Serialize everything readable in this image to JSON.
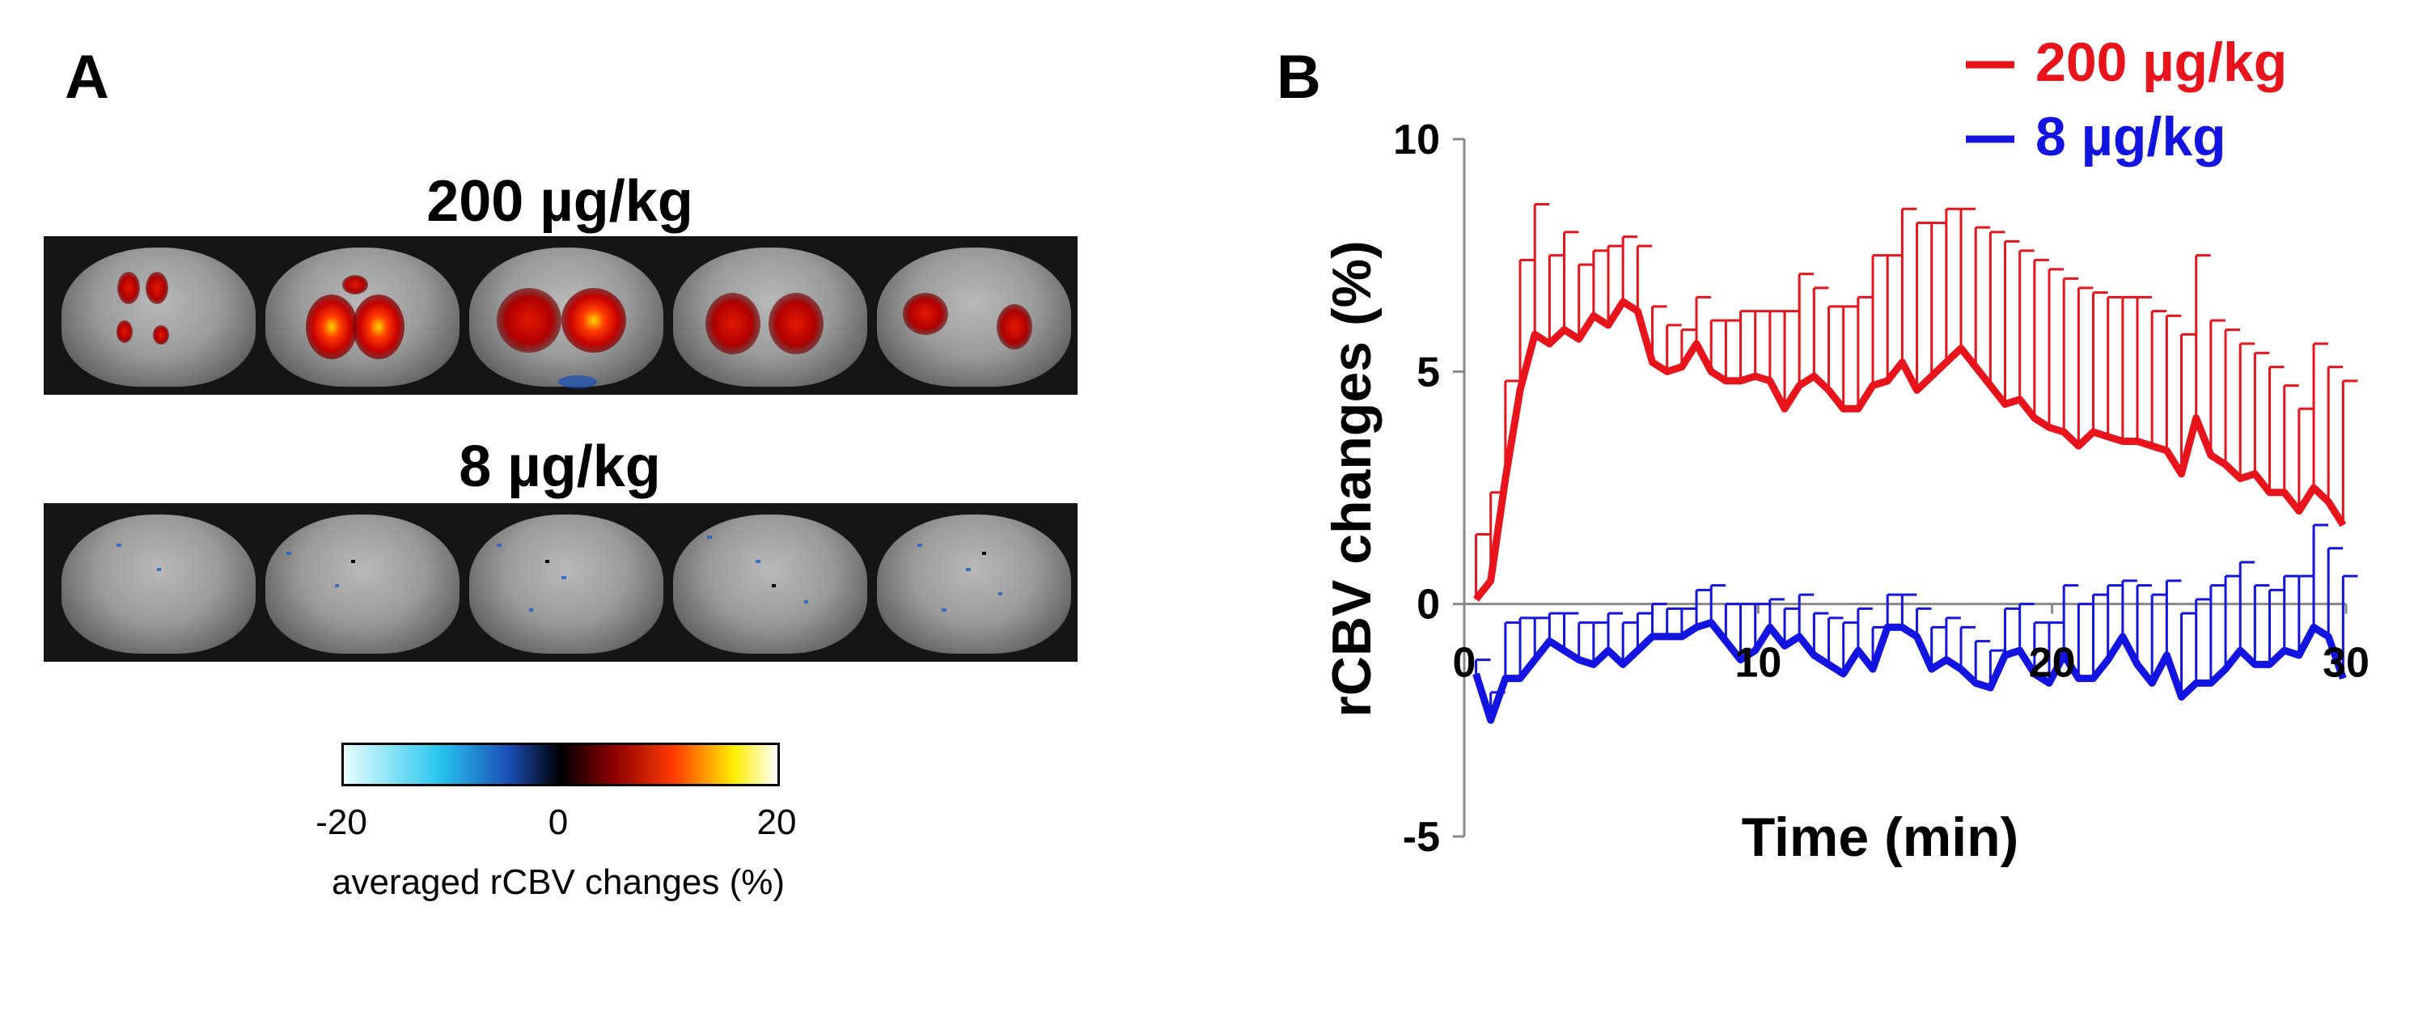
{
  "panel_a": {
    "letter": "A",
    "title_high": "200 µg/kg",
    "title_low": "8 µg/kg",
    "colorbar": {
      "min_label": "-20",
      "mid_label": "0",
      "max_label": "20",
      "label": "averaged rCBV changes (%)"
    }
  },
  "panel_b": {
    "letter": "B"
  },
  "chart_data": {
    "type": "line",
    "title": "",
    "xlabel": "Time (min)",
    "ylabel": "rCBV changes (%)",
    "xlim": [
      0,
      30
    ],
    "ylim": [
      -5,
      10
    ],
    "xticks": [
      0,
      10,
      20,
      30
    ],
    "xtick_labels": [
      "0",
      "10",
      "20",
      "30"
    ],
    "yticks": [
      -5,
      0,
      5,
      10
    ],
    "ytick_labels": [
      "-5",
      "0",
      "5",
      "10"
    ],
    "legend_position": "top-right",
    "series": [
      {
        "name": "200 µg/kg",
        "color": "#e8141c",
        "error_direction": "up",
        "x": [
          0.4,
          0.9,
          1.4,
          1.9,
          2.4,
          2.9,
          3.4,
          3.9,
          4.4,
          4.9,
          5.4,
          5.9,
          6.4,
          6.9,
          7.4,
          7.9,
          8.4,
          8.9,
          9.4,
          9.9,
          10.4,
          10.9,
          11.4,
          11.9,
          12.4,
          12.9,
          13.4,
          13.9,
          14.4,
          14.9,
          15.4,
          15.9,
          16.4,
          16.9,
          17.4,
          17.9,
          18.4,
          18.9,
          19.4,
          19.9,
          20.4,
          20.9,
          21.4,
          21.9,
          22.4,
          22.9,
          23.4,
          23.9,
          24.4,
          24.9,
          25.4,
          25.9,
          26.4,
          26.9,
          27.4,
          27.9,
          28.4,
          28.9,
          29.4,
          29.9
        ],
        "values": [
          0.1,
          0.5,
          2.7,
          4.6,
          5.8,
          5.6,
          5.9,
          5.7,
          6.2,
          6.0,
          6.5,
          6.3,
          5.2,
          5.0,
          5.1,
          5.6,
          5.0,
          4.8,
          4.8,
          4.9,
          4.8,
          4.2,
          4.7,
          4.9,
          4.6,
          4.2,
          4.2,
          4.7,
          4.8,
          5.2,
          4.6,
          4.9,
          5.2,
          5.5,
          5.1,
          4.7,
          4.3,
          4.4,
          4.0,
          3.8,
          3.7,
          3.4,
          3.7,
          3.6,
          3.5,
          3.5,
          3.4,
          3.3,
          2.8,
          4.0,
          3.2,
          3.0,
          2.7,
          2.8,
          2.4,
          2.4,
          2.0,
          2.5,
          2.2,
          1.7
        ],
        "error": [
          1.4,
          1.9,
          2.1,
          2.8,
          2.8,
          1.9,
          2.1,
          1.6,
          1.4,
          1.7,
          1.4,
          1.4,
          1.2,
          1.0,
          0.8,
          1.0,
          1.1,
          1.3,
          1.5,
          1.4,
          1.5,
          2.1,
          2.4,
          1.9,
          1.8,
          2.2,
          2.4,
          2.8,
          2.7,
          3.3,
          3.6,
          3.3,
          3.3,
          3.0,
          3.0,
          3.3,
          3.5,
          3.2,
          3.4,
          3.4,
          3.3,
          3.4,
          3.0,
          3.0,
          3.1,
          3.1,
          2.9,
          2.9,
          3.0,
          3.5,
          2.9,
          2.9,
          2.9,
          2.6,
          2.7,
          2.3,
          2.2,
          3.1,
          2.9,
          3.1
        ]
      },
      {
        "name": "8 µg/kg",
        "color": "#1414e0",
        "error_direction": "up",
        "x": [
          0.4,
          0.9,
          1.4,
          1.9,
          2.4,
          2.9,
          3.4,
          3.9,
          4.4,
          4.9,
          5.4,
          5.9,
          6.4,
          6.9,
          7.4,
          7.9,
          8.4,
          8.9,
          9.4,
          9.9,
          10.4,
          10.9,
          11.4,
          11.9,
          12.4,
          12.9,
          13.4,
          13.9,
          14.4,
          14.9,
          15.4,
          15.9,
          16.4,
          16.9,
          17.4,
          17.9,
          18.4,
          18.9,
          19.4,
          19.9,
          20.4,
          20.9,
          21.4,
          21.9,
          22.4,
          22.9,
          23.4,
          23.9,
          24.4,
          24.9,
          25.4,
          25.9,
          26.4,
          26.9,
          27.4,
          27.9,
          28.4,
          28.9,
          29.4,
          29.9
        ],
        "values": [
          -1.5,
          -2.5,
          -1.6,
          -1.6,
          -1.2,
          -0.8,
          -1.0,
          -1.2,
          -1.3,
          -1.0,
          -1.3,
          -1.0,
          -0.7,
          -0.7,
          -0.7,
          -0.5,
          -0.4,
          -0.8,
          -1.2,
          -1.0,
          -0.5,
          -0.9,
          -0.7,
          -1.1,
          -1.3,
          -1.5,
          -1.0,
          -1.4,
          -0.5,
          -0.5,
          -0.7,
          -1.4,
          -1.2,
          -1.4,
          -1.7,
          -1.8,
          -1.1,
          -1.0,
          -1.5,
          -1.7,
          -1.1,
          -1.6,
          -1.6,
          -1.2,
          -0.7,
          -1.3,
          -1.7,
          -1.1,
          -2.0,
          -1.7,
          -1.7,
          -1.4,
          -1.0,
          -1.3,
          -1.3,
          -1.0,
          -1.1,
          -0.5,
          -0.7,
          -1.6
        ],
        "error": [
          0.3,
          0.6,
          1.2,
          1.3,
          0.9,
          0.6,
          0.8,
          0.8,
          0.9,
          0.8,
          0.9,
          0.8,
          0.7,
          0.6,
          0.6,
          0.8,
          0.8,
          0.8,
          1.2,
          1.0,
          0.6,
          0.8,
          0.9,
          0.9,
          1.0,
          1.1,
          0.9,
          0.9,
          0.7,
          0.7,
          0.6,
          0.9,
          0.9,
          0.9,
          0.9,
          0.8,
          1.0,
          1.0,
          1.1,
          1.3,
          1.5,
          1.6,
          1.8,
          1.6,
          1.2,
          1.7,
          1.9,
          1.6,
          1.8,
          1.8,
          2.1,
          2.0,
          1.9,
          1.7,
          1.6,
          1.6,
          1.7,
          2.2,
          1.9,
          2.2
        ]
      }
    ]
  }
}
